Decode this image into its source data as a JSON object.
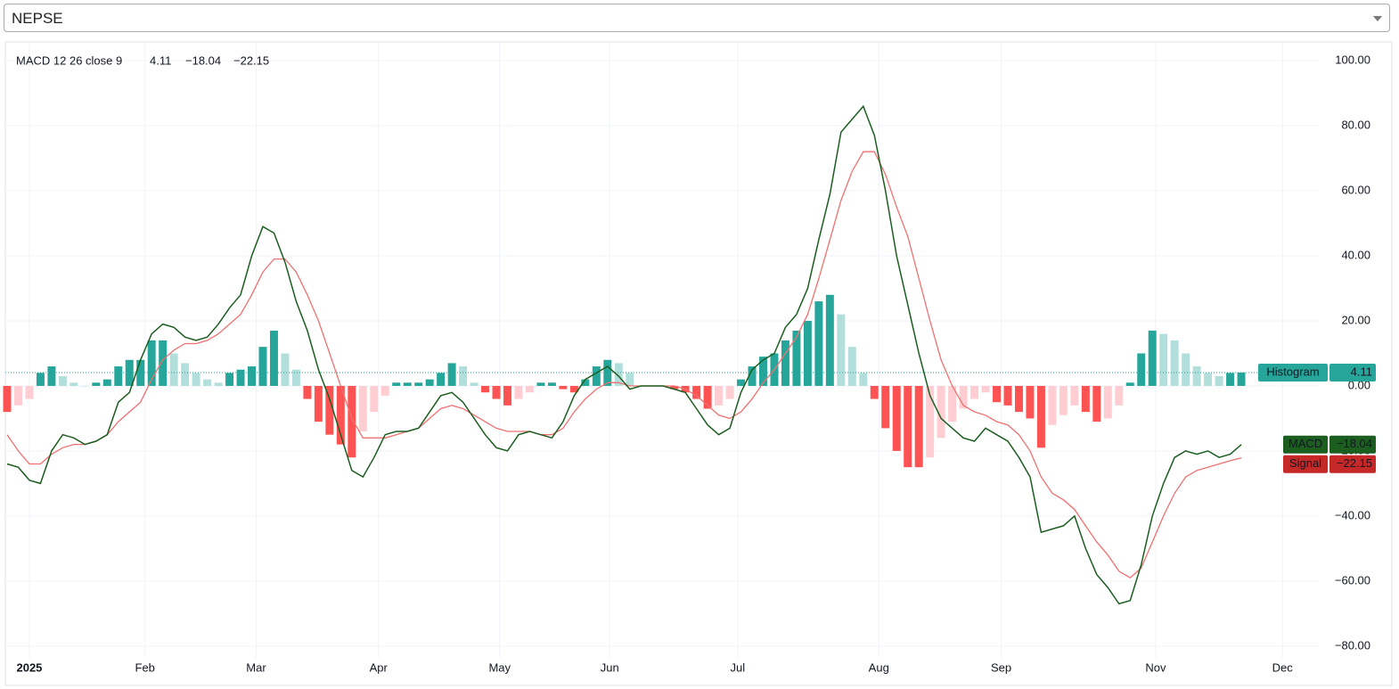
{
  "selector": {
    "value": "NEPSE"
  },
  "chart_data": {
    "type": "macd",
    "legend_title": "MACD 12 26 close 9",
    "xlim": [
      -0.16,
      117.97
    ],
    "xticks": [
      {
        "value": 2.0,
        "label": "2025"
      },
      {
        "value": 12.4,
        "label": "Feb"
      },
      {
        "value": 22.4,
        "label": "Mar"
      },
      {
        "value": 33.4,
        "label": "Apr"
      },
      {
        "value": 44.3,
        "label": "May"
      },
      {
        "value": 54.2,
        "label": "Jun"
      },
      {
        "value": 65.7,
        "label": "Jul"
      },
      {
        "value": 78.4,
        "label": "Aug"
      },
      {
        "value": 89.4,
        "label": "Sep"
      },
      {
        "value": 103.3,
        "label": "Nov"
      },
      {
        "value": 114.7,
        "label": "Dec"
      }
    ],
    "ylim": [
      -83.6,
      105.5
    ],
    "yticks": [
      {
        "value": 100,
        "label": "100.00"
      },
      {
        "value": 80,
        "label": "80.00"
      },
      {
        "value": 60,
        "label": "60.00"
      },
      {
        "value": 40,
        "label": "40.00"
      },
      {
        "value": 20,
        "label": "20.00"
      },
      {
        "value": 0,
        "label": "0.00"
      },
      {
        "value": -20,
        "label": "−20.00"
      },
      {
        "value": -40,
        "label": "−40.00"
      },
      {
        "value": -60,
        "label": "−60.00"
      },
      {
        "value": -80,
        "label": "−80.00"
      }
    ],
    "grid": true,
    "series": [
      {
        "name": "Histogram",
        "last_label": "4.11",
        "color": "#26a69a",
        "colors": {
          "rising_above": "#26a69a",
          "falling_above": "#b2dfdb",
          "falling_below": "#ff5252",
          "rising_below": "#ffcdd2"
        },
        "values": [
          -8,
          -6,
          -4,
          4,
          6,
          3,
          1,
          0,
          1,
          2,
          6,
          8,
          8,
          14,
          14,
          10,
          7,
          4,
          2,
          1,
          4,
          5,
          6,
          12,
          17,
          10,
          5,
          -4,
          -11,
          -15,
          -18,
          -22,
          -14,
          -8,
          -3,
          1,
          1,
          1,
          2,
          4,
          7,
          6,
          1,
          -2,
          -4,
          -6,
          -4,
          -2,
          1,
          1,
          -1,
          -2,
          2,
          6,
          8,
          7,
          4,
          0,
          0,
          0,
          -1,
          -2,
          -4,
          -7,
          -6,
          -4,
          2,
          6,
          9,
          10,
          14,
          17,
          20,
          26,
          28,
          22,
          12,
          4,
          -4,
          -13,
          -20,
          -25,
          -25,
          -22,
          -16,
          -11,
          -7,
          -4,
          -2,
          -5,
          -6,
          -8,
          -10,
          -19,
          -12,
          -9,
          -6,
          -8,
          -11,
          -10,
          -6,
          1,
          10,
          17,
          16,
          14,
          10,
          6,
          4,
          3,
          4,
          4.11
        ]
      },
      {
        "name": "MACD",
        "last_label": "−18.04",
        "color": "#1b5e20",
        "label_color": "#2e7d32",
        "values": [
          -24,
          -25,
          -29,
          -30,
          -20,
          -15,
          -16,
          -18,
          -17,
          -15,
          -5,
          -2,
          8,
          16,
          19,
          18,
          15,
          14,
          15,
          19,
          24,
          28,
          40,
          49,
          47,
          38,
          26,
          17,
          5,
          -4,
          -15,
          -26,
          -28,
          -22,
          -15,
          -14,
          -14,
          -13,
          -8,
          -3,
          -2,
          -5,
          -10,
          -15,
          -19,
          -20,
          -15,
          -14,
          -15,
          -16,
          -11,
          -3,
          2,
          4,
          6,
          3,
          -1,
          0,
          0,
          0,
          -1,
          -2,
          -7,
          -12,
          -15,
          -13,
          -2,
          5,
          8,
          10,
          18,
          22,
          30,
          45,
          59,
          78,
          82,
          86,
          77,
          60,
          40,
          25,
          10,
          -3,
          -10,
          -13,
          -16,
          -17,
          -13,
          -15,
          -17,
          -22,
          -28,
          -45,
          -44,
          -43,
          -40,
          -50,
          -58,
          -62,
          -67,
          -66,
          -55,
          -40,
          -30,
          -22,
          -20,
          -21,
          -20,
          -22,
          -21,
          -18.04
        ]
      },
      {
        "name": "Signal",
        "last_label": "−22.15",
        "color": "#ef7070",
        "label_color": "#c62828",
        "values": [
          -15,
          -20,
          -24,
          -24,
          -21,
          -19,
          -18,
          -18,
          -17,
          -15,
          -11,
          -8,
          -5,
          2,
          8,
          11,
          13,
          13,
          14,
          16,
          19,
          22,
          28,
          35,
          39,
          39,
          35,
          28,
          20,
          10,
          0,
          -10,
          -16,
          -16,
          -16,
          -15,
          -14,
          -13,
          -10,
          -7,
          -6,
          -7,
          -9,
          -11,
          -13,
          -14,
          -14,
          -14,
          -15,
          -15,
          -13,
          -8,
          -4,
          -1,
          1,
          1,
          0,
          0,
          0,
          0,
          0,
          -1,
          -3,
          -6,
          -9,
          -10,
          -8,
          -4,
          1,
          5,
          10,
          15,
          22,
          33,
          45,
          57,
          66,
          72,
          72,
          65,
          55,
          46,
          33,
          20,
          8,
          0,
          -6,
          -8,
          -9,
          -11,
          -12,
          -15,
          -20,
          -28,
          -33,
          -35,
          -38,
          -43,
          -48,
          -52,
          -57,
          -59,
          -56,
          -48,
          -40,
          -33,
          -28,
          -26,
          -25,
          -24,
          -23,
          -22.15
        ]
      }
    ]
  }
}
